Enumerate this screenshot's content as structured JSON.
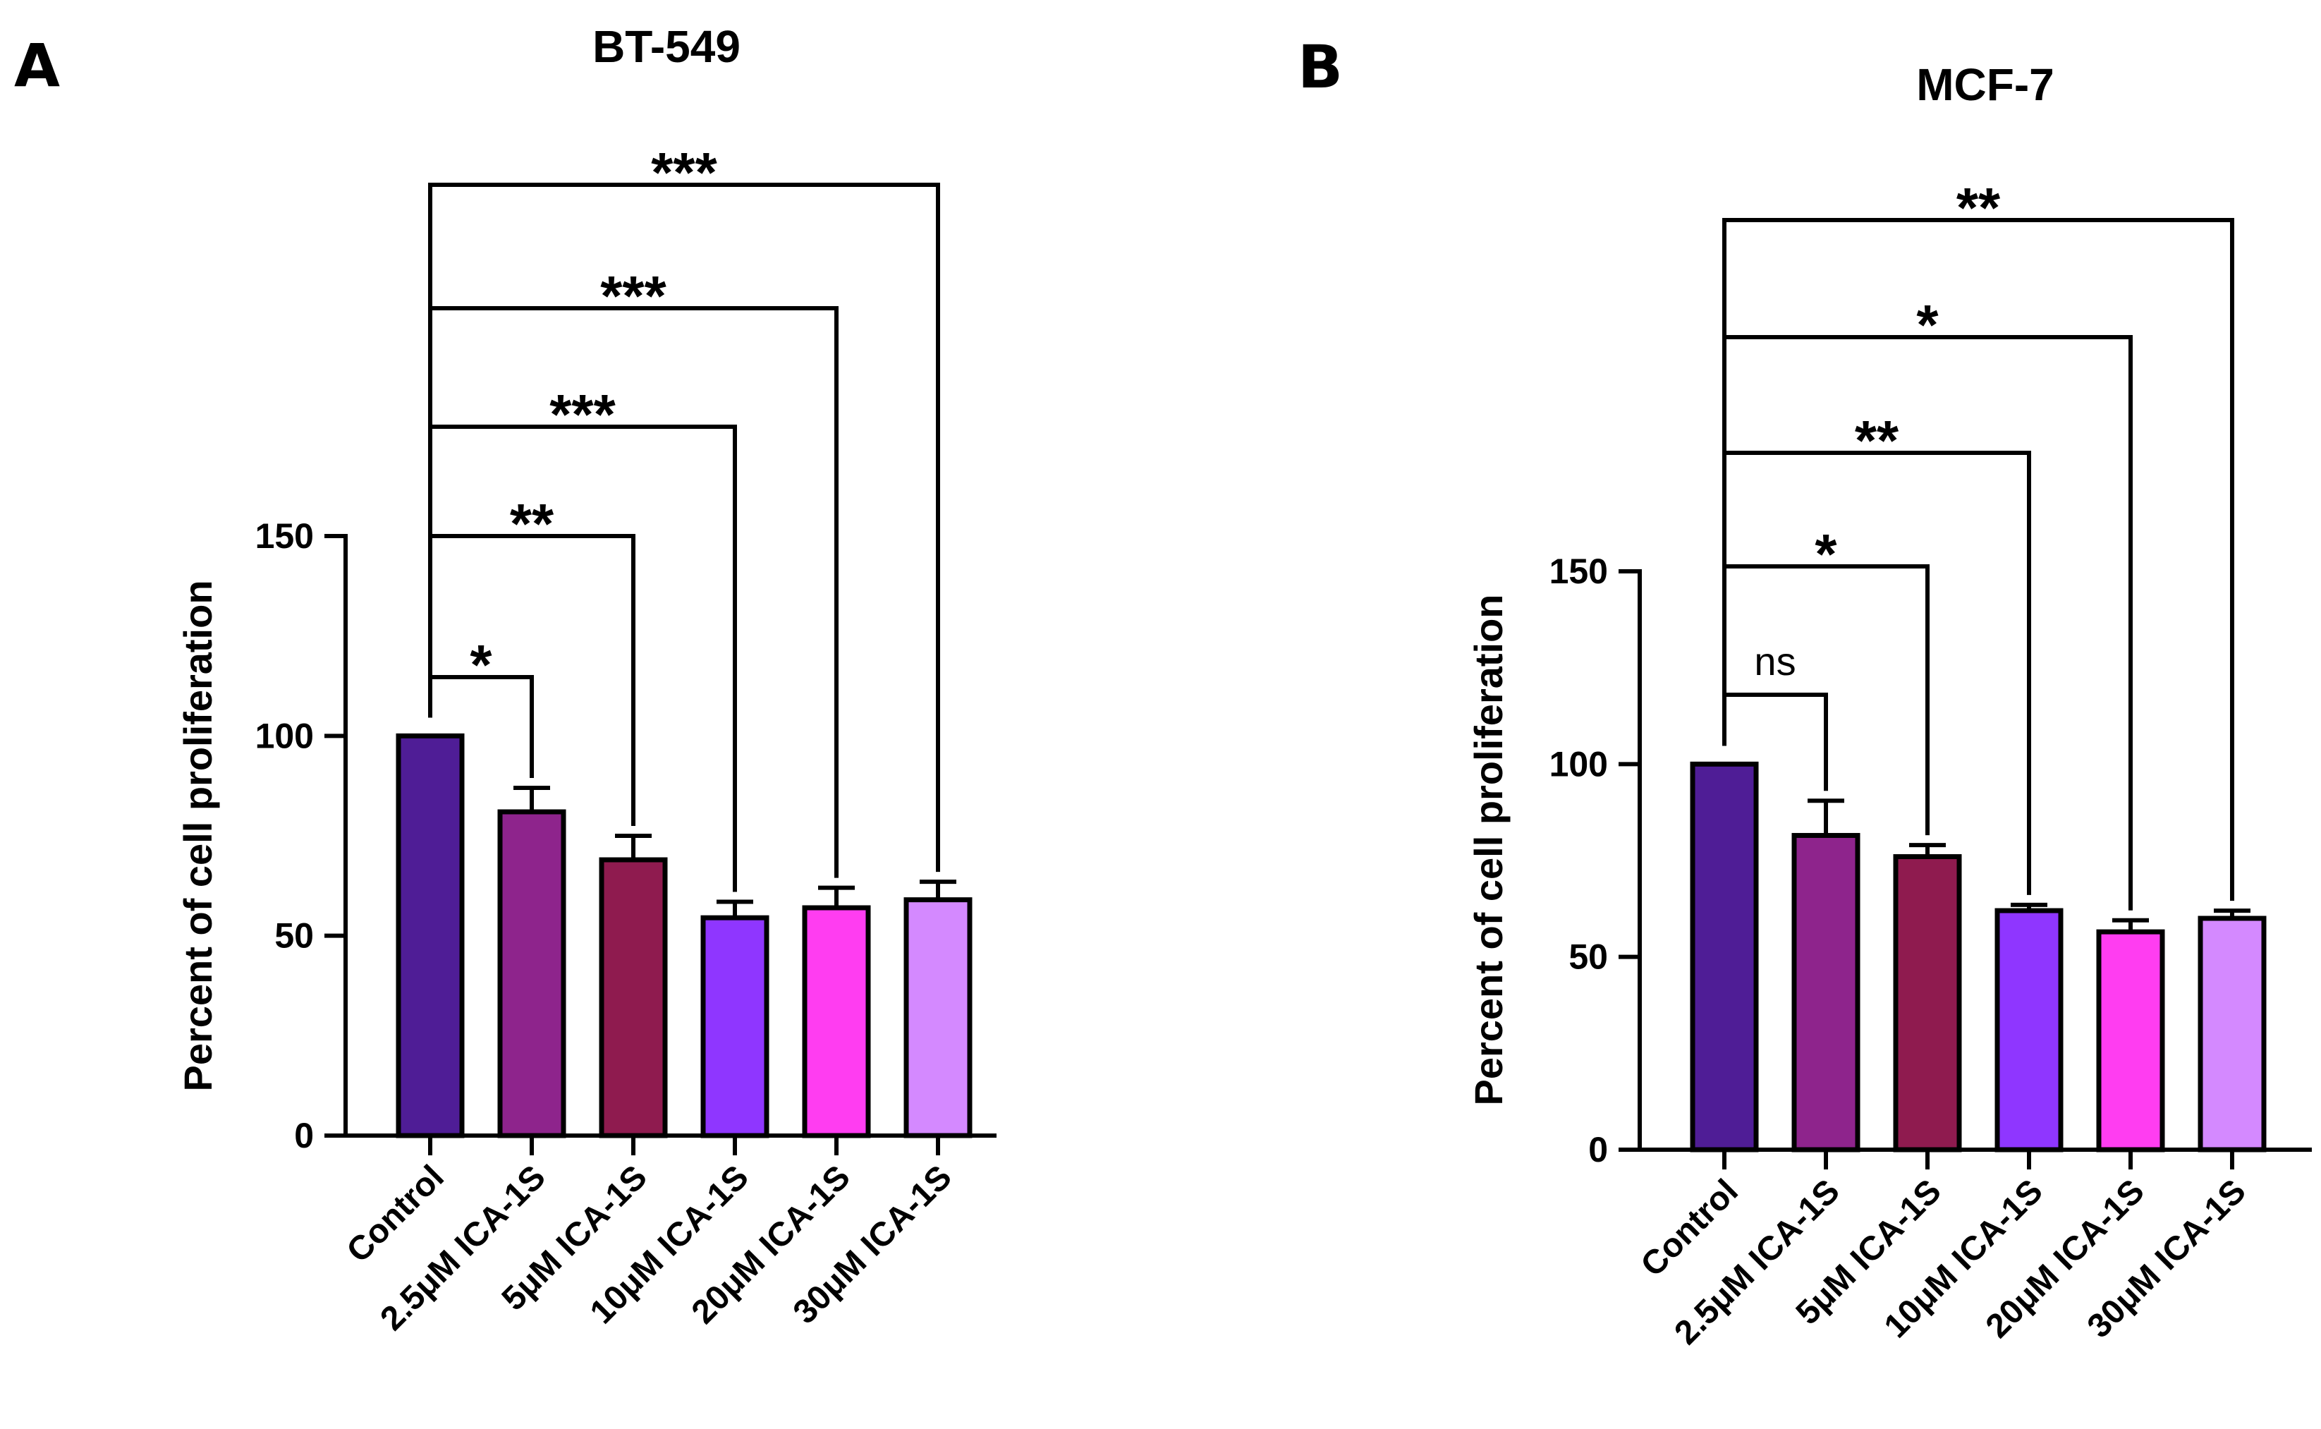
{
  "chart_data": [
    {
      "panel_label": "A",
      "type": "bar",
      "title": "BT-549",
      "ylabel": "Percent of cell proliferation",
      "xlabel": "",
      "ylim": [
        0,
        150
      ],
      "yticks": [
        "0",
        "50",
        "100",
        "150"
      ],
      "categories": [
        "Control",
        "2.5μM ICA-1S",
        "5μM  ICA-1S",
        "10μM ICA-1S",
        "20μM  ICA-1S",
        "30μM  ICA-1S"
      ],
      "values": [
        100,
        81,
        69,
        54.5,
        57,
        59
      ],
      "errors": [
        0,
        6,
        6,
        4,
        5,
        4.5
      ],
      "colors": [
        "#4f1d96",
        "#8e248c",
        "#8f1b4f",
        "#8f36ff",
        "#ff3df1",
        "#d489ff"
      ],
      "comparisons": [
        {
          "from": 0,
          "to": 1,
          "label": "*"
        },
        {
          "from": 0,
          "to": 2,
          "label": "**"
        },
        {
          "from": 0,
          "to": 3,
          "label": "***"
        },
        {
          "from": 0,
          "to": 4,
          "label": "***"
        },
        {
          "from": 0,
          "to": 5,
          "label": "***"
        }
      ]
    },
    {
      "panel_label": "B",
      "type": "bar",
      "title": "MCF-7",
      "ylabel": "Percent of cell proliferation",
      "xlabel": "",
      "ylim": [
        0,
        150
      ],
      "yticks": [
        "0",
        "50",
        "100",
        "150"
      ],
      "categories": [
        "Control",
        "2.5μM ICA-1S",
        "5μM ICA-1S",
        "10μM ICA-1S",
        "20μM ICA-1S",
        "30μM ICA-1S"
      ],
      "values": [
        100,
        81.5,
        76,
        62,
        56.5,
        60
      ],
      "errors": [
        0,
        9,
        3,
        1.5,
        3,
        2
      ],
      "colors": [
        "#4f1d96",
        "#8e248c",
        "#8f1b4f",
        "#8f36ff",
        "#ff3df1",
        "#d489ff"
      ],
      "comparisons": [
        {
          "from": 0,
          "to": 1,
          "label": "ns"
        },
        {
          "from": 0,
          "to": 2,
          "label": "*"
        },
        {
          "from": 0,
          "to": 3,
          "label": "**"
        },
        {
          "from": 0,
          "to": 4,
          "label": "*"
        },
        {
          "from": 0,
          "to": 5,
          "label": "**"
        }
      ]
    }
  ]
}
